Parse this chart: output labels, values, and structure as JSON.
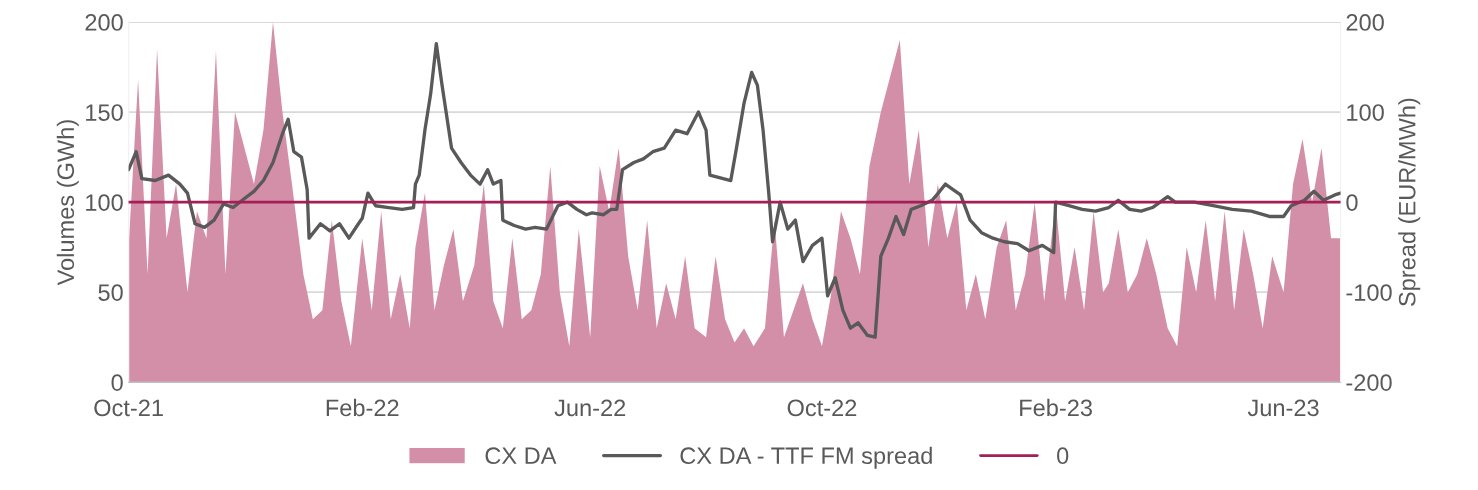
{
  "chart_data": {
    "type": "area",
    "xlabel": null,
    "ylabel": "Volumes (GWh)",
    "y2label": "Spread (EUR/MWh)",
    "xlim": [
      "2021-10-01",
      "2023-07-01"
    ],
    "xticks": [
      {
        "value": "2021-10-01",
        "label": "Oct-21"
      },
      {
        "value": "2022-02-01",
        "label": "Feb-22"
      },
      {
        "value": "2022-06-01",
        "label": "Jun-22"
      },
      {
        "value": "2022-10-01",
        "label": "Oct-22"
      },
      {
        "value": "2023-02-01",
        "label": "Feb-23"
      },
      {
        "value": "2023-06-01",
        "label": "Jun-23"
      }
    ],
    "ylim": [
      0,
      200
    ],
    "yticks": [
      0,
      50,
      100,
      150,
      200
    ],
    "y2lim": [
      -200,
      200
    ],
    "y2ticks": [
      -200,
      -100,
      0,
      100,
      200
    ],
    "grid": "y",
    "legend": "bottom",
    "series": [
      {
        "name": "CX DA",
        "color": "#d48fa8",
        "x": [
          "2021-10-01",
          "2021-10-06",
          "2021-10-11",
          "2021-10-16",
          "2021-10-21",
          "2021-10-26",
          "2021-11-01",
          "2021-11-06",
          "2021-11-11",
          "2021-11-16",
          "2021-11-21",
          "2021-11-26",
          "2021-12-01",
          "2021-12-06",
          "2021-12-11",
          "2021-12-16",
          "2021-12-21",
          "2021-12-26",
          "2022-01-01",
          "2022-01-06",
          "2022-01-11",
          "2022-01-16",
          "2022-01-21",
          "2022-01-26",
          "2022-02-01",
          "2022-02-06",
          "2022-02-11",
          "2022-02-16",
          "2022-02-21",
          "2022-02-26",
          "2022-03-01",
          "2022-03-06",
          "2022-03-11",
          "2022-03-16",
          "2022-03-21",
          "2022-03-26",
          "2022-04-01",
          "2022-04-06",
          "2022-04-11",
          "2022-04-16",
          "2022-04-21",
          "2022-04-26",
          "2022-05-01",
          "2022-05-06",
          "2022-05-11",
          "2022-05-16",
          "2022-05-21",
          "2022-05-26",
          "2022-06-01",
          "2022-06-06",
          "2022-06-11",
          "2022-06-16",
          "2022-06-21",
          "2022-06-26",
          "2022-07-01",
          "2022-07-06",
          "2022-07-11",
          "2022-07-16",
          "2022-07-21",
          "2022-07-26",
          "2022-08-01",
          "2022-08-06",
          "2022-08-11",
          "2022-08-16",
          "2022-08-21",
          "2022-08-26",
          "2022-09-01",
          "2022-09-06",
          "2022-09-11",
          "2022-09-16",
          "2022-09-21",
          "2022-09-26",
          "2022-10-01",
          "2022-10-06",
          "2022-10-11",
          "2022-10-16",
          "2022-10-21",
          "2022-10-26",
          "2022-11-01",
          "2022-11-06",
          "2022-11-11",
          "2022-11-16",
          "2022-11-21",
          "2022-11-26",
          "2022-12-01",
          "2022-12-06",
          "2022-12-11",
          "2022-12-16",
          "2022-12-21",
          "2022-12-26",
          "2023-01-01",
          "2023-01-06",
          "2023-01-11",
          "2023-01-16",
          "2023-01-21",
          "2023-01-26",
          "2023-02-01",
          "2023-02-06",
          "2023-02-11",
          "2023-02-16",
          "2023-02-21",
          "2023-02-26",
          "2023-03-01",
          "2023-03-06",
          "2023-03-11",
          "2023-03-16",
          "2023-03-21",
          "2023-03-26",
          "2023-04-01",
          "2023-04-06",
          "2023-04-11",
          "2023-04-16",
          "2023-04-21",
          "2023-04-26",
          "2023-05-01",
          "2023-05-06",
          "2023-05-11",
          "2023-05-16",
          "2023-05-21",
          "2023-05-26",
          "2023-06-01",
          "2023-06-06",
          "2023-06-11",
          "2023-06-16",
          "2023-06-21",
          "2023-06-26",
          "2023-07-01"
        ],
        "values": [
          75,
          168,
          60,
          185,
          80,
          110,
          50,
          95,
          80,
          184,
          60,
          150,
          130,
          110,
          140,
          200,
          150,
          110,
          60,
          35,
          40,
          90,
          45,
          20,
          80,
          40,
          95,
          35,
          60,
          30,
          75,
          105,
          40,
          65,
          85,
          45,
          65,
          110,
          45,
          30,
          80,
          35,
          40,
          60,
          120,
          50,
          20,
          85,
          25,
          120,
          95,
          130,
          70,
          40,
          90,
          30,
          55,
          35,
          70,
          30,
          25,
          70,
          35,
          22,
          30,
          20,
          30,
          90,
          25,
          40,
          55,
          35,
          20,
          50,
          95,
          80,
          60,
          120,
          150,
          170,
          190,
          110,
          140,
          75,
          110,
          80,
          100,
          40,
          60,
          35,
          75,
          90,
          40,
          60,
          100,
          45,
          100,
          45,
          75,
          40,
          95,
          50,
          55,
          85,
          50,
          60,
          80,
          60,
          30,
          20,
          75,
          50,
          90,
          45,
          95,
          40,
          85,
          60,
          30,
          70,
          50,
          110,
          135,
          100,
          130,
          80,
          80
        ]
      },
      {
        "name": "CX DA - TTF FM spread",
        "type": "line",
        "axis": "y2",
        "color": "#595959",
        "x": [
          "2021-10-01",
          "2021-10-05",
          "2021-10-08",
          "2021-10-15",
          "2021-10-22",
          "2021-10-28",
          "2021-11-01",
          "2021-11-05",
          "2021-11-10",
          "2021-11-15",
          "2021-11-20",
          "2021-11-25",
          "2021-12-01",
          "2021-12-06",
          "2021-12-11",
          "2021-12-16",
          "2021-12-21",
          "2021-12-24",
          "2021-12-27",
          "2021-12-31",
          "2022-01-03",
          "2022-01-04",
          "2022-01-10",
          "2022-01-15",
          "2022-01-20",
          "2022-01-25",
          "2022-01-30",
          "2022-02-01",
          "2022-02-04",
          "2022-02-08",
          "2022-02-15",
          "2022-02-22",
          "2022-02-28",
          "2022-03-01",
          "2022-03-03",
          "2022-03-06",
          "2022-03-09",
          "2022-03-12",
          "2022-03-15",
          "2022-03-20",
          "2022-03-25",
          "2022-03-30",
          "2022-04-04",
          "2022-04-08",
          "2022-04-11",
          "2022-04-15",
          "2022-04-16",
          "2022-04-22",
          "2022-04-28",
          "2022-05-03",
          "2022-05-09",
          "2022-05-15",
          "2022-05-20",
          "2022-05-25",
          "2022-05-30",
          "2022-06-02",
          "2022-06-08",
          "2022-06-12",
          "2022-06-15",
          "2022-06-18",
          "2022-06-24",
          "2022-06-29",
          "2022-07-04",
          "2022-07-10",
          "2022-07-16",
          "2022-07-22",
          "2022-07-28",
          "2022-08-01",
          "2022-08-03",
          "2022-08-10",
          "2022-08-14",
          "2022-08-17",
          "2022-08-21",
          "2022-08-25",
          "2022-08-28",
          "2022-08-31",
          "2022-09-03",
          "2022-09-05",
          "2022-09-09",
          "2022-09-13",
          "2022-09-17",
          "2022-09-21",
          "2022-09-26",
          "2022-10-01",
          "2022-10-04",
          "2022-10-08",
          "2022-10-12",
          "2022-10-16",
          "2022-10-20",
          "2022-10-25",
          "2022-10-29",
          "2022-11-01",
          "2022-11-05",
          "2022-11-09",
          "2022-11-13",
          "2022-11-17",
          "2022-11-22",
          "2022-11-28",
          "2022-12-02",
          "2022-12-05",
          "2022-12-09",
          "2022-12-13",
          "2022-12-18",
          "2022-12-24",
          "2022-12-30",
          "2023-01-05",
          "2023-01-12",
          "2023-01-18",
          "2023-01-25",
          "2023-01-31",
          "2023-02-01",
          "2023-02-08",
          "2023-02-15",
          "2023-02-22",
          "2023-03-01",
          "2023-03-06",
          "2023-03-12",
          "2023-03-18",
          "2023-03-24",
          "2023-04-01",
          "2023-04-05",
          "2023-04-15",
          "2023-04-25",
          "2023-05-05",
          "2023-05-15",
          "2023-05-25",
          "2023-06-01",
          "2023-06-05",
          "2023-06-12",
          "2023-06-17",
          "2023-06-22",
          "2023-06-28",
          "2023-07-01"
        ],
        "values": [
          36,
          56,
          26,
          24,
          30,
          20,
          10,
          -24,
          -28,
          -20,
          -2,
          -6,
          4,
          12,
          24,
          44,
          76,
          92,
          56,
          50,
          14,
          -40,
          -24,
          -32,
          -24,
          -40,
          -24,
          -18,
          10,
          -4,
          -6,
          -8,
          -6,
          20,
          30,
          80,
          120,
          176,
          130,
          60,
          44,
          30,
          20,
          36,
          20,
          24,
          -20,
          -26,
          -30,
          -28,
          -30,
          -4,
          0,
          -8,
          -14,
          -12,
          -14,
          -8,
          -8,
          36,
          44,
          48,
          56,
          60,
          80,
          76,
          100,
          80,
          30,
          26,
          24,
          60,
          110,
          144,
          130,
          80,
          10,
          -44,
          0,
          -30,
          -20,
          -66,
          -48,
          -40,
          -104,
          -84,
          -120,
          -140,
          -134,
          -148,
          -150,
          -60,
          -40,
          -16,
          -36,
          -8,
          -4,
          2,
          12,
          20,
          14,
          8,
          -20,
          -34,
          -40,
          -44,
          -46,
          -54,
          -48,
          -56,
          0,
          -4,
          -8,
          -10,
          -6,
          2,
          -8,
          -10,
          -6,
          6,
          0,
          0,
          -4,
          -8,
          -10,
          -16,
          -16,
          -4,
          2,
          12,
          2,
          8,
          10
        ]
      }
    ],
    "ref_lines": [
      {
        "axis": "y2",
        "value": 0,
        "label": "0",
        "color": "#a31f56",
        "line_style": "solid"
      }
    ]
  }
}
